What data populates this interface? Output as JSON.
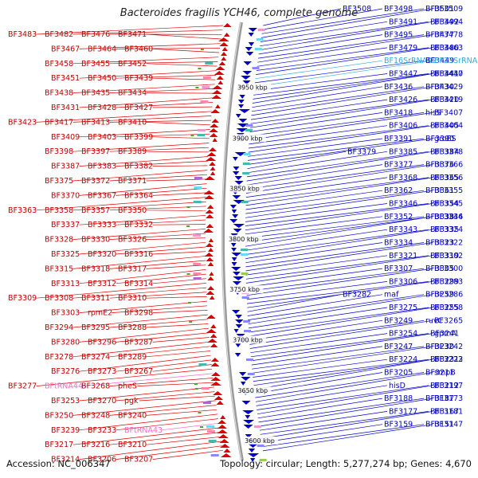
{
  "title": "Bacteroides fragilis YCH46, complete genome",
  "footer": {
    "accession": "Accession: NC_006347",
    "info": "Topology: circular; Length: 5,277,274 bp; Genes: 4,670"
  },
  "colors": {
    "forward": "#dd0000",
    "reverse": "#0000cc",
    "backbone": "#888888",
    "rna_label": "#ff66cc",
    "rna_label_right": "#33aadd",
    "marker": "#44aa22"
  },
  "kbp_marks": [
    {
      "label": "3950 kbp",
      "frac": 0.152
    },
    {
      "label": "3900 kbp",
      "frac": 0.268
    },
    {
      "label": "3850 kbp",
      "frac": 0.383
    },
    {
      "label": "3800 kbp",
      "frac": 0.498
    },
    {
      "label": "3750 kbp",
      "frac": 0.613
    },
    {
      "label": "3700 kbp",
      "frac": 0.728
    },
    {
      "label": "3650 kbp",
      "frac": 0.844
    },
    {
      "label": "3600 kbp",
      "frac": 0.958
    }
  ],
  "left_labels": [
    "BF3483",
    "BF3482",
    "BF3476",
    "BF3471",
    "BF3467",
    "BF3464",
    "BF3460",
    "BF3458",
    "BF3455",
    "BF3452",
    "BF3451",
    "BF3450",
    "BF3439",
    "BF3438",
    "BF3435",
    "BF3434",
    "BF3431",
    "BF3428",
    "BF3427",
    "BF3423",
    "BF3417",
    "BF3413",
    "BF3410",
    "BF3409",
    "BF3403",
    "BF3399",
    "BF3398",
    "BF3397",
    "BF3389",
    "BF3387",
    "BF3383",
    "BF3382",
    "BF3375",
    "BF3372",
    "BF3371",
    "BF3370",
    "BF3367",
    "BF3364",
    "BF3363",
    "BF3358",
    "BF3357",
    "BF3350",
    "BF3337",
    "BF3333",
    "BF3332",
    "BF3328",
    "BF3330",
    "BF3326",
    "BF3325",
    "BF3320",
    "BF3316",
    "BF3315",
    "BF3318",
    "BF3317",
    "BF3313",
    "BF3312",
    "BF3314",
    "BF3309",
    "BF3308",
    "BF3311",
    "BF3310",
    "BF3303",
    "rpmE2",
    "BF3298",
    "BF3294",
    "BF3295",
    "BF3288",
    "BF3280",
    "BF3296",
    "BF3287",
    "BF3278",
    "BF3274",
    "BF3289",
    "BF3276",
    "BF3273",
    "BF3267",
    "BF3277",
    "BFtRNA44",
    "BF3268",
    "pheS",
    "BF3253",
    "BF3270",
    "pgk",
    "BF3250",
    "BF3248",
    "BF3240",
    "BF3239",
    "BF3233",
    "BFtRNA43",
    "BF3217",
    "BF3216",
    "BF3210",
    "BF3214",
    "BF3206",
    "BF3207"
  ],
  "right_labels": [
    "BF3508",
    "BF3498",
    "BF3501",
    "BF3509",
    "BF3491",
    "BF3492",
    "BF3494",
    "BF3495",
    "BF3477",
    "BF3478",
    "BF3479",
    "BF3480",
    "BF3463",
    "BF16SrRNA02",
    "BF3449",
    "BF23SrRNA02",
    "BF3447",
    "BF3441",
    "BF3437",
    "BF3440",
    "BF3436",
    "BF3430",
    "BF3429",
    "BF3426",
    "BF3420",
    "BF3419",
    "BF3418",
    "hisS",
    "BF3407",
    "BF3406",
    "BF3405",
    "BF3404",
    "BF3391",
    "BF3390",
    "groES",
    "BF3379",
    "BF3385",
    "BF3384",
    "BF3378",
    "BF3377",
    "BF3376",
    "BF3366",
    "BF3368",
    "BF3365",
    "BF3356",
    "BF3362",
    "BF3361",
    "BF3355",
    "BF3346",
    "BF3354",
    "BF3345",
    "BF3352",
    "BF3338",
    "BF3344",
    "BF3336",
    "BF3343",
    "BF3335",
    "BF3324",
    "BF3334",
    "BF3323",
    "BF3322",
    "BF3321",
    "BF3319",
    "BF3302",
    "BF3307",
    "BF3305",
    "BF3300",
    "BF3306",
    "BF3299",
    "BF3283",
    "BF3282",
    "maf",
    "BF3259",
    "BF3286",
    "BF3275",
    "BF3255",
    "BF3258",
    "BF3249",
    "ruvC",
    "BF3265",
    "BF3254",
    "BF3241",
    "gpmA",
    "BF3247",
    "BF3230",
    "BF3242",
    "BF3224",
    "BF3231",
    "BF3223",
    "BF3222",
    "BF3205",
    "BF3211",
    "smpB",
    "hisD",
    "BF3212",
    "BF3197",
    "BF3188",
    "BF3187",
    "BF3173",
    "BF3177",
    "BF3167",
    "BF3181",
    "BF3159",
    "BF3151",
    "BF3147"
  ]
}
